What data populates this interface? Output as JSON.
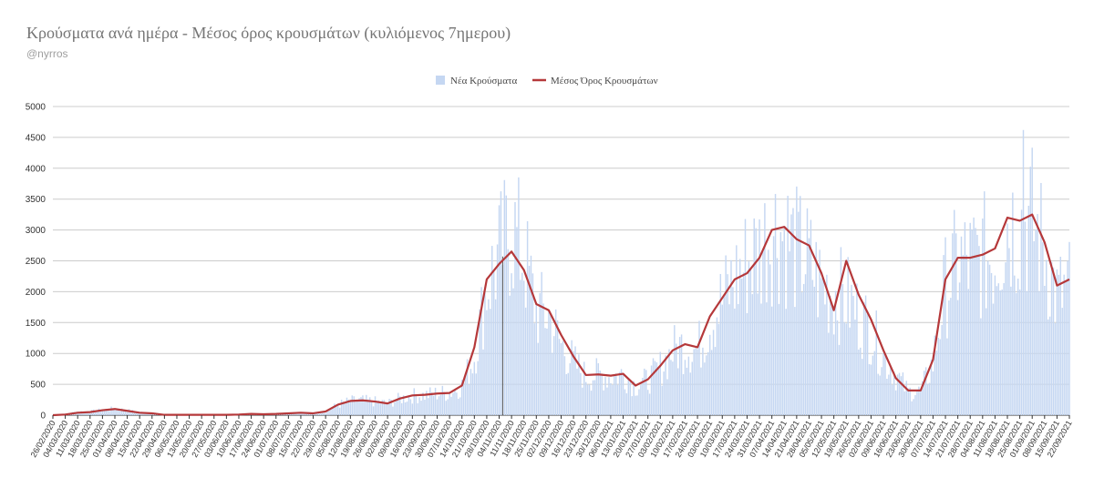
{
  "header": {
    "title": "Κρούσματα ανά ημέρα - Μέσος όρος κρουσμάτων (κυλιόμενος 7ημερου)",
    "subtitle": "@nyrros"
  },
  "colors": {
    "bars": "#c5d7f2",
    "line": "#b5383a",
    "grid": "#cccccc",
    "axis": "#333333",
    "marker": "#555555"
  },
  "chart_data": {
    "type": "bar",
    "title": "Κρούσματα ανά ημέρα - Μέσος όρος κρουσμάτων (κυλιόμενος 7ημερου)",
    "x_start": "26/02/2020",
    "x_end": "22/09/2021",
    "ylim": [
      0,
      5000
    ],
    "yticks": [
      0,
      500,
      1000,
      1500,
      2000,
      2500,
      3000,
      3500,
      4000,
      4500,
      5000
    ],
    "grid": true,
    "legend_position": "top-center",
    "xtick_labels": [
      "26/02/2020",
      "04/03/2020",
      "11/03/2020",
      "18/03/2020",
      "25/03/2020",
      "01/04/2020",
      "08/04/2020",
      "15/04/2020",
      "22/04/2020",
      "29/04/2020",
      "06/05/2020",
      "13/05/2020",
      "20/05/2020",
      "27/05/2020",
      "03/06/2020",
      "10/06/2020",
      "17/06/2020",
      "24/06/2020",
      "01/07/2020",
      "08/07/2020",
      "15/07/2020",
      "22/07/2020",
      "29/07/2020",
      "05/08/2020",
      "12/08/2020",
      "19/08/2020",
      "26/08/2020",
      "02/09/2020",
      "09/09/2020",
      "16/09/2020",
      "23/09/2020",
      "30/09/2020",
      "07/10/2020",
      "14/10/2020",
      "21/10/2020",
      "28/10/2020",
      "04/11/2020",
      "11/11/2020",
      "18/11/2020",
      "25/11/2020",
      "02/12/2020",
      "09/12/2020",
      "16/12/2020",
      "23/12/2020",
      "30/12/2020",
      "06/01/2021",
      "13/01/2021",
      "20/01/2021",
      "27/01/2021",
      "03/02/2021",
      "10/02/2021",
      "17/02/2021",
      "24/02/2021",
      "03/03/2021",
      "10/03/2021",
      "17/03/2021",
      "24/03/2021",
      "31/03/2021",
      "07/04/2021",
      "14/04/2021",
      "21/04/2021",
      "28/04/2021",
      "05/05/2021",
      "12/05/2021",
      "19/05/2021",
      "26/05/2021",
      "02/06/2021",
      "09/06/2021",
      "16/06/2021",
      "23/06/2021",
      "30/06/2021",
      "07/07/2021",
      "14/07/2021",
      "21/07/2021",
      "28/07/2021",
      "04/08/2021",
      "11/08/2021",
      "18/08/2021",
      "25/08/2021",
      "01/09/2021",
      "08/09/2021",
      "15/09/2021",
      "22/09/2021"
    ],
    "series": [
      {
        "name": "Νέα Κρούσματα",
        "type": "bar",
        "weekly_points": [
          0,
          20,
          60,
          60,
          90,
          110,
          80,
          50,
          40,
          10,
          10,
          5,
          5,
          5,
          5,
          10,
          20,
          10,
          20,
          30,
          40,
          30,
          60,
          180,
          240,
          250,
          230,
          200,
          280,
          330,
          340,
          370,
          380,
          500,
          1000,
          2200,
          2700,
          3200,
          2700,
          1800,
          1700,
          1200,
          900,
          650,
          700,
          650,
          700,
          500,
          600,
          800,
          1100,
          1200,
          1100,
          1600,
          1950,
          2300,
          2600,
          2800,
          3200,
          3100,
          2800,
          2600,
          2200,
          2100,
          2000,
          1700,
          1450,
          1000,
          700,
          400,
          400,
          900,
          2200,
          2600,
          2600,
          2700,
          2700,
          3300,
          3250,
          3300,
          2800,
          2000,
          2200
        ],
        "peak_value": 4620,
        "peak_date": "27/08/2021"
      },
      {
        "name": "Μέσος Όρος Κρουσμάτων",
        "type": "line",
        "weekly_values": [
          0,
          10,
          40,
          50,
          80,
          100,
          70,
          40,
          30,
          5,
          5,
          5,
          5,
          5,
          5,
          10,
          20,
          15,
          20,
          30,
          40,
          30,
          60,
          170,
          230,
          240,
          220,
          190,
          270,
          320,
          330,
          350,
          360,
          480,
          1100,
          2200,
          2450,
          2650,
          2350,
          1800,
          1700,
          1300,
          950,
          650,
          660,
          640,
          670,
          480,
          580,
          800,
          1050,
          1150,
          1100,
          1600,
          1900,
          2200,
          2300,
          2550,
          3000,
          3050,
          2850,
          2750,
          2300,
          1700,
          2500,
          1950,
          1550,
          1050,
          600,
          400,
          400,
          900,
          2200,
          2550,
          2550,
          2600,
          2700,
          3200,
          3150,
          3250,
          2800,
          2100,
          2200
        ]
      }
    ],
    "vertical_marker_date": "06/11/2020"
  }
}
